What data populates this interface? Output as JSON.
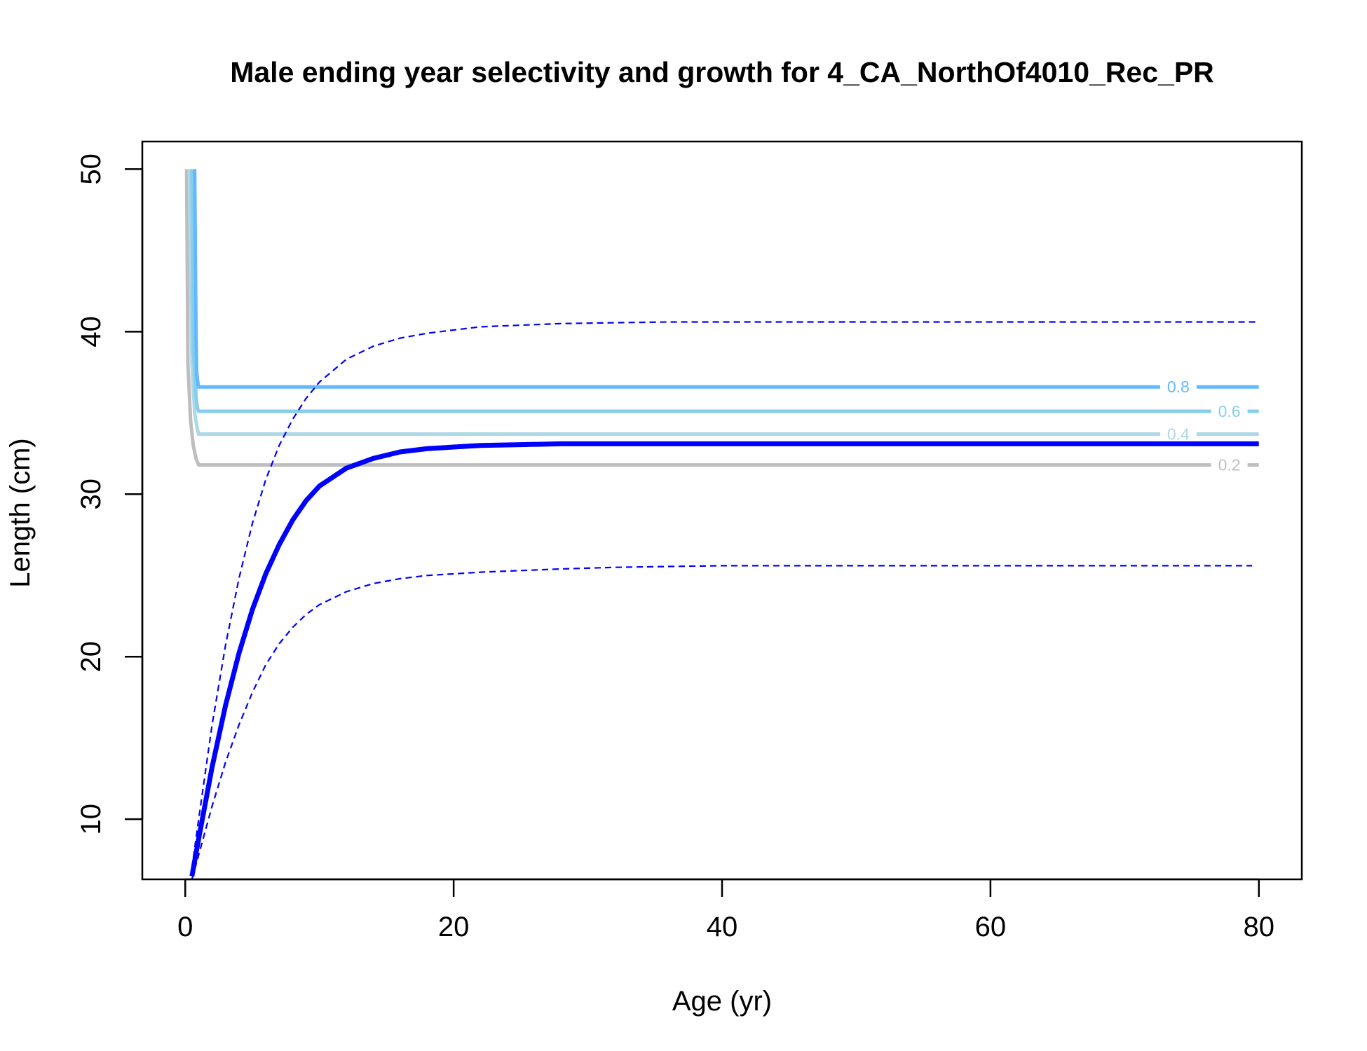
{
  "chart_data": {
    "type": "line",
    "title": "Male ending year selectivity and growth for 4_CA_NorthOf4010_Rec_PR",
    "xlabel": "Age (yr)",
    "ylabel": "Length (cm)",
    "xlim": [
      -3.2,
      83.2
    ],
    "ylim": [
      6.3,
      51.7
    ],
    "x_ticks": [
      0,
      20,
      40,
      60,
      80
    ],
    "y_ticks": [
      10,
      20,
      30,
      40,
      50
    ],
    "grid": false,
    "colors": {
      "growth": "#0000FF",
      "contour_0.2": "#BEBEBE",
      "contour_0.4": "#ADD8E6",
      "contour_0.6": "#87CEEB",
      "contour_0.8": "#63B8FF"
    },
    "growth_curve": {
      "x": [
        0.5,
        1,
        2,
        3,
        4,
        5,
        6,
        7,
        8,
        9,
        10,
        12,
        14,
        16,
        18,
        20,
        22,
        25,
        28,
        32,
        36,
        40,
        50,
        60,
        70,
        80
      ],
      "y": [
        6.5,
        8.8,
        13.2,
        17.0,
        20.2,
        22.9,
        25.1,
        26.9,
        28.4,
        29.6,
        30.5,
        31.6,
        32.2,
        32.6,
        32.8,
        32.9,
        33.0,
        33.05,
        33.1,
        33.1,
        33.1,
        33.1,
        33.1,
        33.1,
        33.1,
        33.1
      ]
    },
    "growth_upper": {
      "x": [
        0.5,
        1,
        2,
        3,
        4,
        5,
        6,
        7,
        8,
        9,
        10,
        12,
        14,
        16,
        18,
        20,
        22,
        25,
        28,
        32,
        36,
        40,
        50,
        60,
        70,
        80
      ],
      "y": [
        7.0,
        10.0,
        15.8,
        20.7,
        24.8,
        28.2,
        30.9,
        33.0,
        34.6,
        35.9,
        36.9,
        38.3,
        39.1,
        39.6,
        39.9,
        40.1,
        40.3,
        40.4,
        40.5,
        40.55,
        40.6,
        40.6,
        40.6,
        40.6,
        40.6,
        40.6
      ]
    },
    "growth_lower": {
      "x": [
        0.5,
        1,
        2,
        3,
        4,
        5,
        6,
        7,
        8,
        9,
        10,
        12,
        14,
        16,
        18,
        20,
        22,
        25,
        28,
        32,
        36,
        40,
        50,
        60,
        70,
        79.5
      ],
      "y": [
        6.3,
        7.8,
        10.8,
        13.5,
        15.8,
        17.8,
        19.5,
        20.8,
        21.8,
        22.6,
        23.2,
        24.0,
        24.5,
        24.8,
        25.0,
        25.1,
        25.2,
        25.3,
        25.4,
        25.5,
        25.55,
        25.6,
        25.6,
        25.6,
        25.6,
        25.6
      ]
    },
    "contours": [
      {
        "level": "0.2",
        "label": "0.2",
        "x": [
          0.1,
          0.2,
          0.4,
          0.6,
          0.8,
          1.0,
          80.0
        ],
        "y": [
          50.0,
          38.0,
          34.5,
          33.0,
          32.2,
          31.8,
          31.8
        ],
        "label_x": 77.8
      },
      {
        "level": "0.4",
        "label": "0.4",
        "x": [
          0.3,
          0.5,
          0.7,
          0.9,
          1.0,
          80.0
        ],
        "y": [
          50.0,
          38.0,
          35.0,
          34.0,
          33.7,
          33.7
        ],
        "label_x": 74.0
      },
      {
        "level": "0.6",
        "label": "0.6",
        "x": [
          0.5,
          0.6,
          0.8,
          0.9,
          1.0,
          80.0
        ],
        "y": [
          50.0,
          39.0,
          36.0,
          35.3,
          35.1,
          35.1
        ],
        "label_x": 77.8
      },
      {
        "level": "0.8",
        "label": "0.8",
        "x": [
          0.7,
          0.8,
          0.85,
          0.95,
          1.0,
          80.0
        ],
        "y": [
          50.0,
          40.0,
          37.5,
          36.8,
          36.6,
          36.6
        ],
        "label_x": 74.0
      }
    ]
  }
}
